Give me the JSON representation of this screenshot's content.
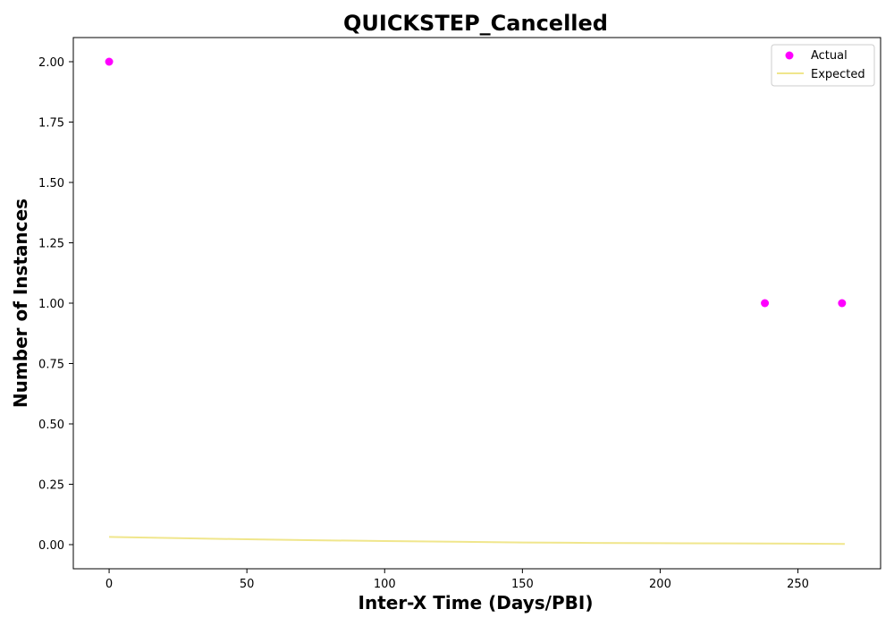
{
  "chart_data": {
    "type": "scatter",
    "title": "QUICKSTEP_Cancelled",
    "xlabel": "Inter-X Time (Days/PBI)",
    "ylabel": "Number of Instances",
    "xlim": [
      -13,
      280
    ],
    "ylim": [
      -0.1,
      2.1
    ],
    "xticks": [
      0,
      50,
      100,
      150,
      200,
      250
    ],
    "yticks": [
      0.0,
      0.25,
      0.5,
      0.75,
      1.0,
      1.25,
      1.5,
      1.75,
      2.0
    ],
    "xtick_labels": [
      "0",
      "50",
      "100",
      "150",
      "200",
      "250"
    ],
    "ytick_labels": [
      "0.00",
      "0.25",
      "0.50",
      "0.75",
      "1.00",
      "1.25",
      "1.50",
      "1.75",
      "2.00"
    ],
    "grid": false,
    "legend_position": "top-right",
    "series": [
      {
        "name": "Actual",
        "kind": "scatter",
        "color": "#ff00ff",
        "points": [
          {
            "x": 0,
            "y": 2.0
          },
          {
            "x": 238,
            "y": 1.0
          },
          {
            "x": 266,
            "y": 1.0
          }
        ]
      },
      {
        "name": "Expected",
        "kind": "line",
        "color": "#f0e68c",
        "points": [
          {
            "x": 0,
            "y": 0.032
          },
          {
            "x": 25,
            "y": 0.027
          },
          {
            "x": 50,
            "y": 0.022
          },
          {
            "x": 75,
            "y": 0.018
          },
          {
            "x": 100,
            "y": 0.015
          },
          {
            "x": 125,
            "y": 0.012
          },
          {
            "x": 150,
            "y": 0.009
          },
          {
            "x": 175,
            "y": 0.007
          },
          {
            "x": 200,
            "y": 0.006
          },
          {
            "x": 225,
            "y": 0.005
          },
          {
            "x": 250,
            "y": 0.004
          },
          {
            "x": 267,
            "y": 0.003
          }
        ]
      }
    ]
  }
}
